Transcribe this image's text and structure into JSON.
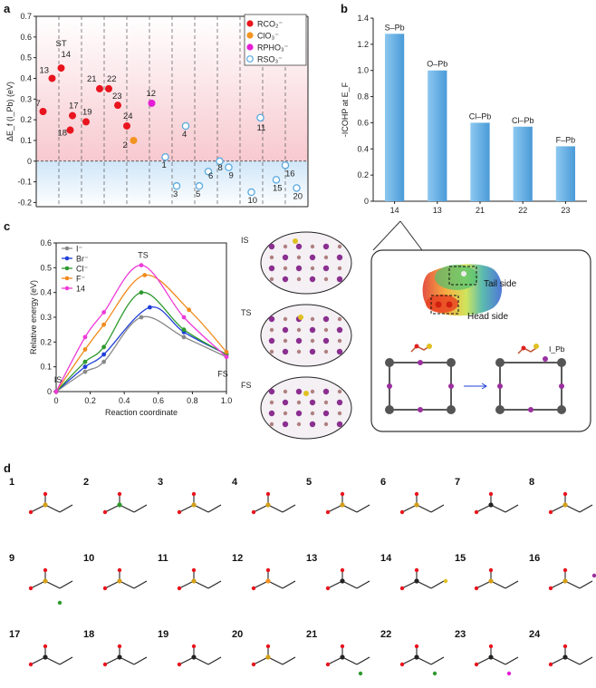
{
  "panel_letters": [
    "a",
    "b",
    "c",
    "d"
  ],
  "chart_data": [
    {
      "type": "scatter",
      "panel": "a",
      "ylabel": "ΔE_f (I_Pb) (eV)",
      "ylim": [
        -0.22,
        0.7
      ],
      "yticks": [
        "-0.2",
        "-0.1",
        "0",
        "0.1",
        "0.2",
        "0.3",
        "0.4",
        "0.5",
        "0.6",
        "0.7"
      ],
      "legend": [
        "RCO₂⁻",
        "ClO₃⁻",
        "RPHO₃⁻",
        "RSO₃⁻"
      ],
      "legend_colors": [
        "#e8141e",
        "#f39422",
        "#e61dd6",
        "#5aa9e0"
      ],
      "top_label": "ST",
      "points": [
        {
          "label": "7",
          "y": 0.24,
          "series": "RCO₂⁻"
        },
        {
          "label": "13",
          "y": 0.4,
          "series": "RCO₂⁻"
        },
        {
          "label": "14",
          "y": 0.45,
          "series": "RCO₂⁻"
        },
        {
          "label": "17",
          "y": 0.22,
          "series": "RCO₂⁻"
        },
        {
          "label": "18",
          "y": 0.15,
          "series": "RCO₂⁻"
        },
        {
          "label": "19",
          "y": 0.19,
          "series": "RCO₂⁻"
        },
        {
          "label": "21",
          "y": 0.35,
          "series": "RCO₂⁻"
        },
        {
          "label": "22",
          "y": 0.35,
          "series": "RCO₂⁻"
        },
        {
          "label": "23",
          "y": 0.27,
          "series": "RCO₂⁻"
        },
        {
          "label": "24",
          "y": 0.17,
          "series": "RCO₂⁻"
        },
        {
          "label": "2",
          "y": 0.1,
          "series": "ClO₃⁻"
        },
        {
          "label": "12",
          "y": 0.28,
          "series": "RPHO₃⁻"
        },
        {
          "label": "1",
          "y": 0.02,
          "series": "RSO₃⁻"
        },
        {
          "label": "3",
          "y": -0.12,
          "series": "RSO₃⁻"
        },
        {
          "label": "4",
          "y": 0.17,
          "series": "RSO₃⁻"
        },
        {
          "label": "5",
          "y": -0.12,
          "series": "RSO₃⁻"
        },
        {
          "label": "6",
          "y": -0.05,
          "series": "RSO₃⁻"
        },
        {
          "label": "8",
          "y": 0.0,
          "series": "RSO₃⁻"
        },
        {
          "label": "9",
          "y": -0.03,
          "series": "RSO₃⁻"
        },
        {
          "label": "10",
          "y": -0.15,
          "series": "RSO₃⁻"
        },
        {
          "label": "11",
          "y": 0.21,
          "series": "RSO₃⁻"
        },
        {
          "label": "15",
          "y": -0.09,
          "series": "RSO₃⁻"
        },
        {
          "label": "16",
          "y": -0.02,
          "series": "RSO₃⁻"
        },
        {
          "label": "20",
          "y": -0.13,
          "series": "RSO₃⁻"
        }
      ]
    },
    {
      "type": "bar",
      "panel": "b",
      "ylabel": "-ICOHP at E_F",
      "ylim": [
        0,
        1.4
      ],
      "yticks": [
        "0",
        "0.2",
        "0.4",
        "0.6",
        "0.8",
        "1.0",
        "1.2",
        "1.4"
      ],
      "categories": [
        "14",
        "13",
        "21",
        "22",
        "23"
      ],
      "bar_labels": [
        "S–Pb",
        "O–Pb",
        "Cl–Pb",
        "Cl–Pb",
        "F–Pb"
      ],
      "values": [
        1.28,
        1.0,
        0.6,
        0.57,
        0.42
      ],
      "bar_color": "#5aa9e0"
    },
    {
      "type": "line",
      "panel": "c",
      "xlabel": "Reaction coordinate",
      "ylabel": "Relative energy (eV)",
      "xlim": [
        0,
        1.0
      ],
      "ylim": [
        0,
        0.6
      ],
      "xticks": [
        "0",
        "0.2",
        "0.4",
        "0.6",
        "0.8",
        "1.0"
      ],
      "yticks": [
        "0",
        "0.1",
        "0.2",
        "0.3",
        "0.4",
        "0.5",
        "0.6"
      ],
      "annotations": [
        "IS",
        "TS",
        "FS"
      ],
      "series": [
        {
          "name": "I⁻",
          "color": "#8a8a8a",
          "points": [
            [
              0,
              0
            ],
            [
              0.17,
              0.08
            ],
            [
              0.28,
              0.12
            ],
            [
              0.5,
              0.3
            ],
            [
              0.75,
              0.22
            ],
            [
              1.0,
              0.14
            ]
          ]
        },
        {
          "name": "Br⁻",
          "color": "#1f3fd8",
          "points": [
            [
              0,
              0
            ],
            [
              0.17,
              0.1
            ],
            [
              0.28,
              0.15
            ],
            [
              0.55,
              0.34
            ],
            [
              0.75,
              0.24
            ],
            [
              1.0,
              0.15
            ]
          ]
        },
        {
          "name": "Cl⁻",
          "color": "#2e9a2e",
          "points": [
            [
              0,
              0
            ],
            [
              0.17,
              0.12
            ],
            [
              0.28,
              0.18
            ],
            [
              0.5,
              0.4
            ],
            [
              0.75,
              0.25
            ],
            [
              1.0,
              0.15
            ]
          ]
        },
        {
          "name": "F⁻",
          "color": "#f08a1c",
          "points": [
            [
              0,
              0
            ],
            [
              0.17,
              0.17
            ],
            [
              0.28,
              0.27
            ],
            [
              0.52,
              0.47
            ],
            [
              0.78,
              0.33
            ],
            [
              1.0,
              0.16
            ]
          ]
        },
        {
          "name": "14",
          "color": "#ee3bd8",
          "points": [
            [
              0,
              0
            ],
            [
              0.17,
              0.22
            ],
            [
              0.28,
              0.32
            ],
            [
              0.5,
              0.51
            ],
            [
              0.75,
              0.3
            ],
            [
              1.0,
              0.14
            ]
          ]
        }
      ]
    }
  ],
  "panel_c_structures": [
    "IS",
    "TS",
    "FS"
  ],
  "panel_c_inset": {
    "tail_label": "Tail side",
    "head_label": "Head side",
    "ipb_label": "I_Pb"
  },
  "panel_d": {
    "molecule_numbers": [
      "1",
      "2",
      "3",
      "4",
      "5",
      "6",
      "7",
      "8",
      "9",
      "10",
      "11",
      "12",
      "13",
      "14",
      "15",
      "16",
      "17",
      "18",
      "19",
      "20",
      "21",
      "22",
      "23",
      "24"
    ]
  }
}
